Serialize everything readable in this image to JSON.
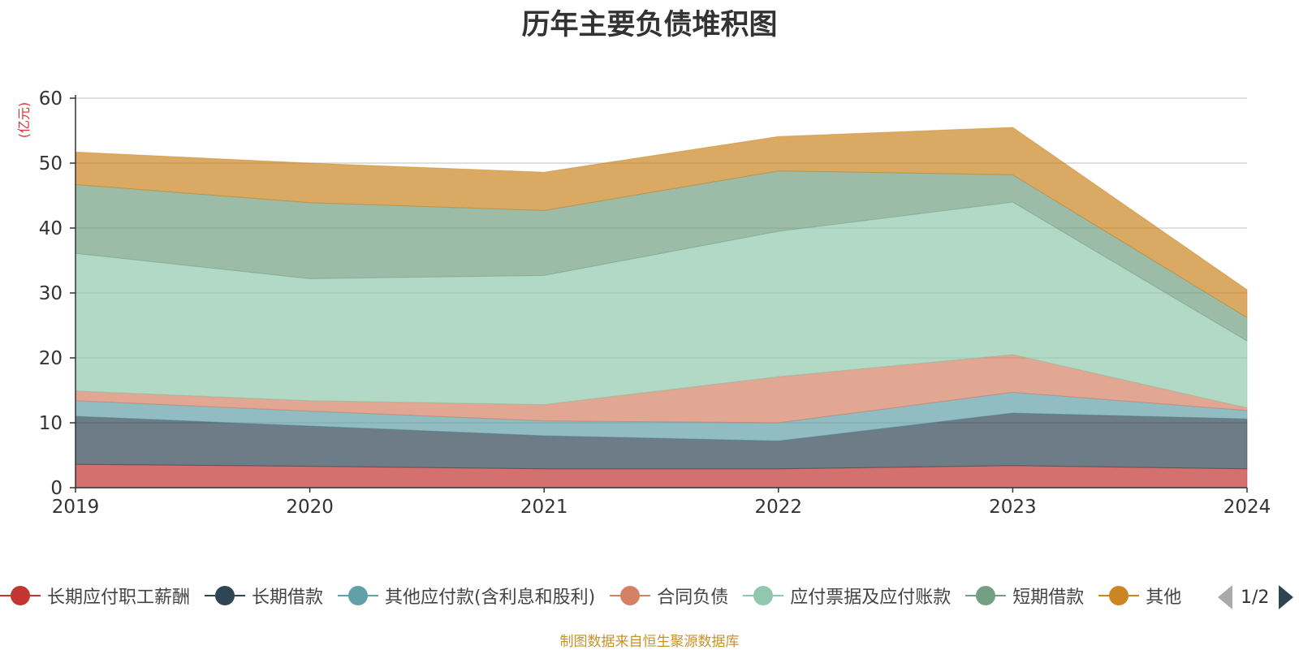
{
  "title": "历年主要负债堆积图",
  "source": "制图数据来自恒生聚源数据库",
  "colors": {
    "title": "#333333",
    "unit": "#e03030",
    "source": "#c8922a",
    "axis": "#333333",
    "tick_label": "#333333",
    "grid": "#cccccc"
  },
  "legend_pager": {
    "text": "1/2",
    "prev_icon": "triangle-left-icon",
    "next_icon": "triangle-right-icon"
  },
  "chart_data": {
    "type": "area",
    "stacked": true,
    "title": "历年主要负债堆积图",
    "ylabel": "(亿元)",
    "xlabel": "",
    "ylim": [
      0,
      60
    ],
    "yticks": [
      0,
      10,
      20,
      30,
      40,
      50,
      60
    ],
    "grid": true,
    "legend_position": "bottom",
    "categories": [
      "2019",
      "2020",
      "2021",
      "2022",
      "2023",
      "2024"
    ],
    "series": [
      {
        "name": "长期应付职工薪酬",
        "color": "#c23531",
        "values": [
          3.6,
          3.3,
          2.9,
          2.9,
          3.4,
          2.9
        ]
      },
      {
        "name": "长期借款",
        "color": "#2f4554",
        "values": [
          7.4,
          6.2,
          5.1,
          4.3,
          8.1,
          7.7
        ]
      },
      {
        "name": "其他应付款(含利息和股利)",
        "color": "#61a0a8",
        "values": [
          2.4,
          2.3,
          2.3,
          2.8,
          3.2,
          1.3
        ]
      },
      {
        "name": "合同负债",
        "color": "#d48265",
        "values": [
          1.5,
          1.6,
          2.5,
          7.1,
          5.8,
          0.4
        ]
      },
      {
        "name": "应付票据及应付账款",
        "color": "#91c7ae",
        "values": [
          21.2,
          18.8,
          19.9,
          22.4,
          23.5,
          10.3
        ]
      },
      {
        "name": "短期借款",
        "color": "#749f83",
        "values": [
          10.6,
          11.7,
          10.0,
          9.3,
          4.2,
          3.6
        ]
      },
      {
        "name": "其他",
        "color": "#ca8622",
        "values": [
          5.0,
          6.1,
          5.9,
          5.3,
          7.3,
          4.3
        ]
      }
    ]
  }
}
